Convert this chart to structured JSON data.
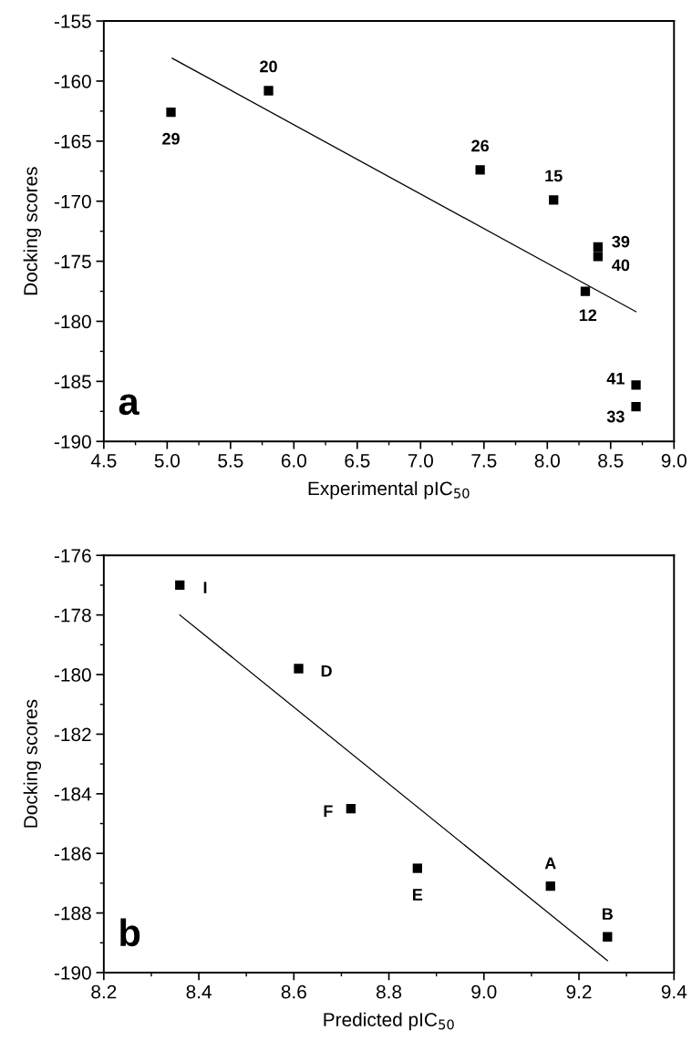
{
  "chart_data": [
    {
      "type": "scatter",
      "xlabel": "Experimental pIC$_{50}$",
      "ylabel": "Docking scores",
      "xlim": [
        4.5,
        9.0
      ],
      "xticks": [
        {
          "value": 4.5,
          "label": "4.5"
        },
        {
          "value": 5.0,
          "label": "5.0"
        },
        {
          "value": 5.5,
          "label": "5.5"
        },
        {
          "value": 6.0,
          "label": "6.0"
        },
        {
          "value": 6.5,
          "label": "6.5"
        },
        {
          "value": 7.0,
          "label": "7.0"
        },
        {
          "value": 7.5,
          "label": "7.5"
        },
        {
          "value": 8.0,
          "label": "8.0"
        },
        {
          "value": 8.5,
          "label": "8.5"
        },
        {
          "value": 9.0,
          "label": "9.0"
        }
      ],
      "ylim": [
        -190,
        -155
      ],
      "yticks": [
        -190,
        -185,
        -180,
        -175,
        -170,
        -165,
        -160,
        -155
      ],
      "grid": false,
      "legend": false,
      "series": [
        {
          "marker": "square",
          "color": "#000000",
          "x": [
            5.03,
            5.8,
            7.47,
            8.05,
            8.4,
            8.4,
            8.3,
            8.7,
            8.7
          ],
          "values": [
            -162.6,
            -160.8,
            -167.4,
            -169.9,
            -173.8,
            -174.6,
            -177.5,
            -185.3,
            -187.1
          ]
        },
        {
          "type": "line",
          "marker": "none",
          "line_style": "solid",
          "color": "#000000",
          "x": [
            5.04,
            8.7
          ],
          "values": [
            -158.1,
            -179.2
          ]
        }
      ],
      "annotations": [
        {
          "text": "29",
          "x": 5.03,
          "y": -162.6
        },
        {
          "text": "20",
          "x": 5.8,
          "y": -160.8
        },
        {
          "text": "26",
          "x": 7.47,
          "y": -167.4
        },
        {
          "text": "15",
          "x": 8.05,
          "y": -169.9
        },
        {
          "text": "39",
          "x": 8.4,
          "y": -173.8
        },
        {
          "text": "40",
          "x": 8.4,
          "y": -174.6
        },
        {
          "text": "12",
          "x": 8.3,
          "y": -177.5
        },
        {
          "text": "41",
          "x": 8.7,
          "y": -185.3
        },
        {
          "text": "33",
          "x": 8.7,
          "y": -187.1
        },
        "a"
      ]
    },
    {
      "type": "scatter",
      "xlabel": "Predicted pIC$_{50}$",
      "ylabel": "Docking scores",
      "xlim": [
        8.2,
        9.4
      ],
      "xticks": [
        {
          "value": 8.2,
          "label": "8.2"
        },
        {
          "value": 8.4,
          "label": "8.4"
        },
        {
          "value": 8.6,
          "label": "8.6"
        },
        {
          "value": 8.8,
          "label": "8.8"
        },
        {
          "value": 9.0,
          "label": "9.0"
        },
        {
          "value": 9.2,
          "label": "9.2"
        },
        {
          "value": 9.4,
          "label": "9.4"
        }
      ],
      "ylim": [
        -190,
        -176
      ],
      "yticks": [
        -190,
        -188,
        -186,
        -184,
        -182,
        -180,
        -178,
        -176
      ],
      "grid": false,
      "legend": false,
      "series": [
        {
          "marker": "square",
          "color": "#000000",
          "x": [
            8.36,
            8.61,
            8.72,
            8.86,
            9.14,
            9.26
          ],
          "values": [
            -177.0,
            -179.8,
            -184.5,
            -186.5,
            -187.1,
            -188.8
          ]
        },
        {
          "type": "line",
          "marker": "none",
          "line_style": "solid",
          "color": "#000000",
          "x": [
            8.36,
            9.26
          ],
          "values": [
            -178.0,
            -189.6
          ]
        }
      ],
      "annotations": [
        {
          "text": "I",
          "x": 8.36,
          "y": -177.0
        },
        {
          "text": "D",
          "x": 8.61,
          "y": -179.8
        },
        {
          "text": "F",
          "x": 8.72,
          "y": -184.5
        },
        {
          "text": "E",
          "x": 8.86,
          "y": -186.5
        },
        {
          "text": "A",
          "x": 9.14,
          "y": -187.1
        },
        {
          "text": "B",
          "x": 9.26,
          "y": -188.8
        },
        "b"
      ]
    }
  ]
}
